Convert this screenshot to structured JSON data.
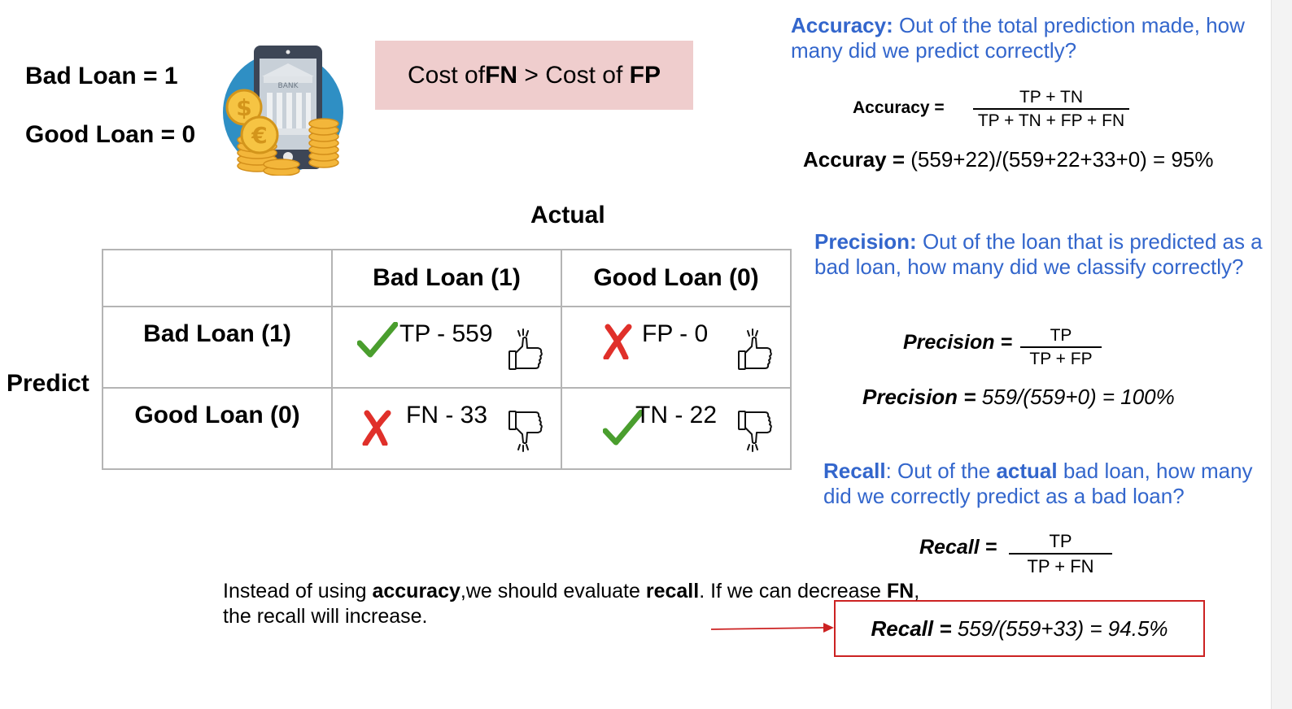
{
  "legend": {
    "bad": "Bad Loan = 1",
    "good": "Good Loan = 0"
  },
  "bank_icon": {
    "sign": "BANK"
  },
  "cost": {
    "prefix": "Cost of ",
    "fn": "FN",
    "mid": " > Cost of ",
    "fp": "FP"
  },
  "axis": {
    "actual": "Actual",
    "predict": "Predict"
  },
  "matrix": {
    "col_headers": [
      "Bad Loan (1)",
      "Good Loan (0)"
    ],
    "row_headers": [
      "Bad Loan (1)",
      "Good Loan (0)"
    ],
    "tp": "TP - 559",
    "fp": "FP - 0",
    "fn": "FN - 33",
    "tn": "TN - 22"
  },
  "accuracy": {
    "term": "Accuracy:",
    "def": " Out of the total prediction made, how many did we predict correctly?",
    "formula_label": "Accuracy  =",
    "num": "TP + TN",
    "den": "TP + TN + FP + FN",
    "calc_label": "Accuray = ",
    "calc_value": "(559+22)/(559+22+33+0) = 95%"
  },
  "precision": {
    "term": "Precision:",
    "def": " Out of the loan that is predicted as a bad loan, how many did we classify correctly?",
    "formula_label": "Precision =",
    "num": "TP",
    "den": "TP + FP",
    "calc_label": "Precision = ",
    "calc_value": "559/(559+0) = 100%"
  },
  "recall": {
    "term": "Recall",
    "def_a": ": Out of the ",
    "def_b": "actual",
    "def_c": " bad loan, how many did we correctly predict as a bad loan?",
    "formula_label": "Recall =",
    "num": "TP",
    "den": "TP + FN",
    "calc_label": "Recall = ",
    "calc_value": "559/(559+33) = 94.5%"
  },
  "note": {
    "a": "Instead of using ",
    "b": "accuracy",
    "c": ",we should evaluate ",
    "d": "recall",
    "e": ". If we can decrease ",
    "f": "FN",
    "g": ", the recall will increase."
  },
  "colors": {
    "blue": "#3366cc",
    "check_green": "#4a9e2e",
    "cross_red": "#e0302a",
    "box_pink": "#efcdcd",
    "recall_border": "#cc2222"
  }
}
